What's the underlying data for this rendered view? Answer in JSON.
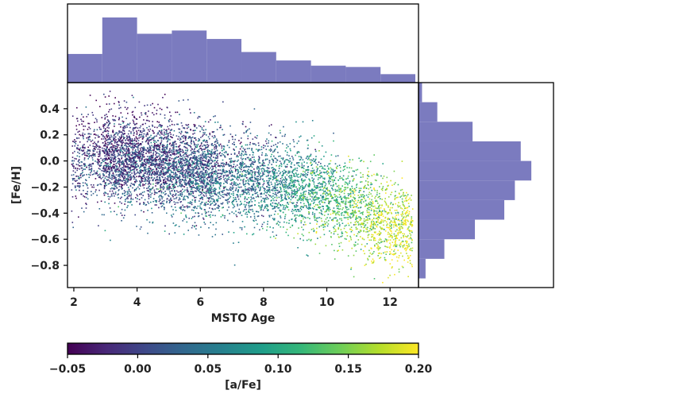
{
  "chart_data": [
    {
      "type": "scatter",
      "title": "",
      "xlabel": "MSTO Age",
      "ylabel": "[Fe/H]",
      "xlim": [
        1.8,
        12.9
      ],
      "ylim": [
        -0.97,
        0.6
      ],
      "xticks": [
        "2",
        "4",
        "6",
        "8",
        "10",
        "12"
      ],
      "yticks": [
        "0.4",
        "0.2",
        "0.0",
        "−0.2",
        "−0.4",
        "−0.6",
        "−0.8"
      ],
      "grid": false,
      "color_by": "[a/Fe]",
      "colormap": "viridis",
      "point_count_approx": 20000,
      "trend": [
        {
          "age": 2,
          "feh_mean": 0.02,
          "afe_mean": -0.01
        },
        {
          "age": 4,
          "feh_mean": 0.02,
          "afe_mean": 0.0
        },
        {
          "age": 6,
          "feh_mean": -0.08,
          "afe_mean": 0.02
        },
        {
          "age": 8,
          "feh_mean": -0.15,
          "afe_mean": 0.05
        },
        {
          "age": 10,
          "feh_mean": -0.25,
          "afe_mean": 0.11
        },
        {
          "age": 12,
          "feh_mean": -0.48,
          "afe_mean": 0.18
        }
      ]
    },
    {
      "type": "bar",
      "orientation": "vertical",
      "description_axis": "MSTO Age histogram (top marginal)",
      "bin_edges": [
        1.8,
        2.9,
        4.0,
        5.1,
        6.2,
        7.3,
        8.4,
        9.5,
        10.6,
        11.7,
        12.8
      ],
      "relative_heights": [
        0.44,
        1.0,
        0.75,
        0.8,
        0.67,
        0.47,
        0.34,
        0.26,
        0.24,
        0.13
      ],
      "color": "#7b7bbf"
    },
    {
      "type": "bar",
      "orientation": "horizontal",
      "description_axis": "[Fe/H] histogram (right marginal)",
      "bin_edges": [
        -0.9,
        -0.75,
        -0.6,
        -0.45,
        -0.3,
        -0.15,
        0.0,
        0.15,
        0.3,
        0.45,
        0.6
      ],
      "relative_counts": [
        0.06,
        0.22,
        0.48,
        0.73,
        0.82,
        0.96,
        0.87,
        0.46,
        0.16,
        0.03
      ],
      "color": "#7b7bbf"
    }
  ],
  "colorbar": {
    "label": "[a/Fe]",
    "range": [
      -0.05,
      0.2
    ],
    "ticks": [
      "−0.05",
      "0.00",
      "0.05",
      "0.10",
      "0.15",
      "0.20"
    ],
    "colormap_stops": [
      "#440154",
      "#482878",
      "#3e4989",
      "#31688e",
      "#26828e",
      "#1f9e89",
      "#35b779",
      "#6ece58",
      "#b5de2b",
      "#fde725"
    ]
  },
  "colors": {
    "hist": "#7b7bbf",
    "frame": "#000000"
  }
}
